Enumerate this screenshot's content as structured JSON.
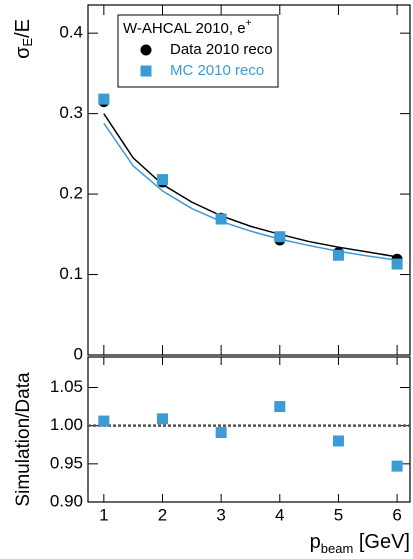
{
  "chart_data": [
    {
      "type": "scatter",
      "ylabel": {
        "text": "σ",
        "sub": "E",
        "tail": "/E"
      },
      "legend_title": {
        "text": "W-AHCAL 2010, e",
        "sup": "+"
      },
      "legend": "upper left",
      "xlim": [
        0.73,
        6.22
      ],
      "ylim": [
        0,
        0.435
      ],
      "xticks": [
        1,
        2,
        3,
        4,
        5,
        6
      ],
      "yticks": [
        0,
        0.1,
        0.2,
        0.3,
        0.4
      ],
      "x": [
        1,
        2,
        3,
        4,
        5,
        6
      ],
      "series": [
        {
          "name": "Data 2010 reco",
          "color": "#000000",
          "marker": "circle",
          "values": [
            0.315,
            0.215,
            0.17,
            0.143,
            0.127,
            0.119
          ]
        },
        {
          "name": "MC 2010 reco",
          "color": "#3a9bd5",
          "marker": "square",
          "values": [
            0.318,
            0.218,
            0.169,
            0.147,
            0.124,
            0.113
          ]
        }
      ],
      "fit_x": [
        1,
        1.5,
        2,
        2.5,
        3,
        3.5,
        4,
        4.5,
        5,
        5.5,
        6
      ],
      "fits": [
        {
          "color": "#000000",
          "values": [
            0.3,
            0.245,
            0.212,
            0.19,
            0.173,
            0.16,
            0.15,
            0.141,
            0.134,
            0.128,
            0.122
          ]
        },
        {
          "color": "#3a9bd5",
          "values": [
            0.288,
            0.235,
            0.204,
            0.182,
            0.166,
            0.154,
            0.144,
            0.136,
            0.129,
            0.123,
            0.118
          ]
        }
      ]
    },
    {
      "type": "scatter",
      "ylabel": "Simulation/Data",
      "xlabel": {
        "text": "p",
        "sub": "beam",
        "tail": " [GeV]"
      },
      "xlim": [
        0.73,
        6.22
      ],
      "ylim": [
        0.9,
        1.09
      ],
      "xticks": [
        1,
        2,
        3,
        4,
        5,
        6
      ],
      "yticks": [
        {
          "value": 0.9,
          "label": "0.90"
        },
        0.95,
        {
          "value": 1,
          "label": "1.00"
        },
        1.05
      ],
      "reference_line": 1,
      "x": [
        1,
        2,
        3,
        4,
        5,
        6
      ],
      "series": [
        {
          "color": "#3a9bd5",
          "marker": "square",
          "values": [
            1.006,
            1.009,
            0.991,
            1.025,
            0.98,
            0.947
          ]
        }
      ]
    }
  ]
}
